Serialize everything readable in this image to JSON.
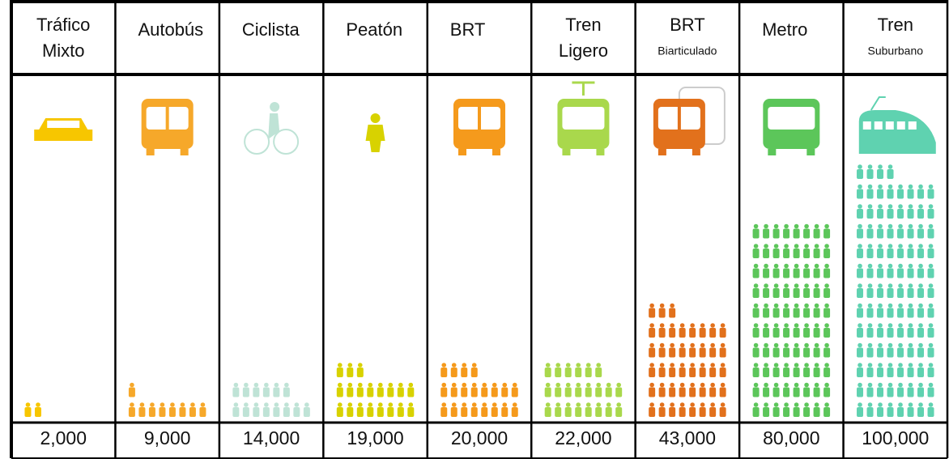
{
  "chart_data": {
    "type": "pictogram",
    "categories": [
      [
        "Tráfico",
        "Mixto"
      ],
      [
        "Autobús"
      ],
      [
        "Ciclista"
      ],
      [
        "Peatón"
      ],
      [
        "BRT"
      ],
      [
        "Tren",
        "Ligero"
      ],
      [
        "BRT",
        "Biarticulado"
      ],
      [
        "Metro"
      ],
      [
        "Tren",
        "Suburbano"
      ]
    ],
    "values": [
      2000,
      9000,
      14000,
      19000,
      20000,
      22000,
      43000,
      80000,
      100000
    ],
    "value_labels": [
      "2,000",
      "9,000",
      "14,000",
      "19,000",
      "20,000",
      "22,000",
      "43,000",
      "80,000",
      "100,000"
    ],
    "colors": [
      "#f7c600",
      "#f6a82a",
      "#bfe3d6",
      "#d8d200",
      "#f59a1c",
      "#a9d84c",
      "#e2711c",
      "#5cc65a",
      "#5fd2b0"
    ]
  }
}
